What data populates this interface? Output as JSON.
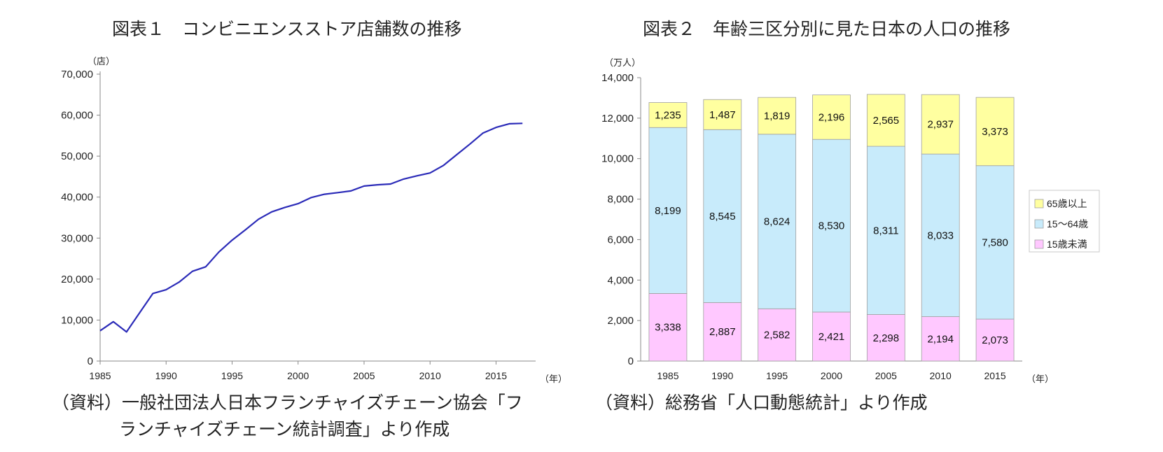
{
  "chart_data": [
    {
      "type": "line",
      "title": "図表１　コンビニエンスストア店舗数の推移",
      "unit_label": "（店）",
      "x_unit_label": "（年）",
      "ylim": [
        0,
        70000
      ],
      "yticks": [
        "0",
        "10,000",
        "20,000",
        "30,000",
        "40,000",
        "50,000",
        "60,000",
        "70,000"
      ],
      "xlim": [
        1985,
        2018
      ],
      "xticks": [
        "1985",
        "1990",
        "1995",
        "2000",
        "2005",
        "2010",
        "2015"
      ],
      "color": "#2b2bb8",
      "x": [
        1985,
        1986,
        1987,
        1988,
        1989,
        1990,
        1991,
        1992,
        1993,
        1994,
        1995,
        1996,
        1997,
        1998,
        1999,
        2000,
        2001,
        2002,
        2003,
        2004,
        2005,
        2006,
        2007,
        2008,
        2009,
        2010,
        2011,
        2012,
        2013,
        2014,
        2015,
        2016,
        2017
      ],
      "values": [
        7400,
        9600,
        7100,
        11800,
        16500,
        17400,
        19300,
        21900,
        23000,
        26600,
        29500,
        32000,
        34600,
        36400,
        37500,
        38400,
        39900,
        40700,
        41100,
        41500,
        42700,
        43000,
        43200,
        44400,
        45200,
        45900,
        47700,
        50300,
        52900,
        55600,
        57000,
        57900,
        58000
      ],
      "source": [
        "（資料）一般社団法人日本フランチャイズチェーン協会「フ",
        "ランチャイズチェーン統計調査」より作成"
      ]
    },
    {
      "type": "stacked-bar",
      "title": "図表２　年齢三区分別に見た日本の人口の推移",
      "unit_label": "（万人）",
      "x_unit_label": "（年）",
      "ylim": [
        0,
        14000
      ],
      "yticks": [
        "0",
        "2,000",
        "4,000",
        "6,000",
        "8,000",
        "10,000",
        "12,000",
        "14,000"
      ],
      "categories": [
        "1985",
        "1990",
        "1995",
        "2000",
        "2005",
        "2010",
        "2015"
      ],
      "series": [
        {
          "name": "15歳未満",
          "color": "#ffc8ff",
          "values": [
            3338,
            2887,
            2582,
            2421,
            2298,
            2194,
            2073
          ],
          "labels": [
            "3,338",
            "2,887",
            "2,582",
            "2,421",
            "2,298",
            "2,194",
            "2,073"
          ]
        },
        {
          "name": "15～64歳",
          "color": "#c8ebfb",
          "values": [
            8199,
            8545,
            8624,
            8530,
            8311,
            8033,
            7580
          ],
          "labels": [
            "8,199",
            "8,545",
            "8,624",
            "8,530",
            "8,311",
            "8,033",
            "7,580"
          ]
        },
        {
          "name": "65歳以上",
          "color": "#ffffa0",
          "values": [
            1235,
            1487,
            1819,
            2196,
            2565,
            2937,
            3373
          ],
          "labels": [
            "1,235",
            "1,487",
            "1,819",
            "2,196",
            "2,565",
            "2,937",
            "3,373"
          ]
        }
      ],
      "legend": [
        "65歳以上",
        "15～64歳",
        "15歳未満"
      ],
      "legend_position": "right",
      "source": [
        "（資料）総務省「人口動態統計」より作成"
      ]
    }
  ]
}
